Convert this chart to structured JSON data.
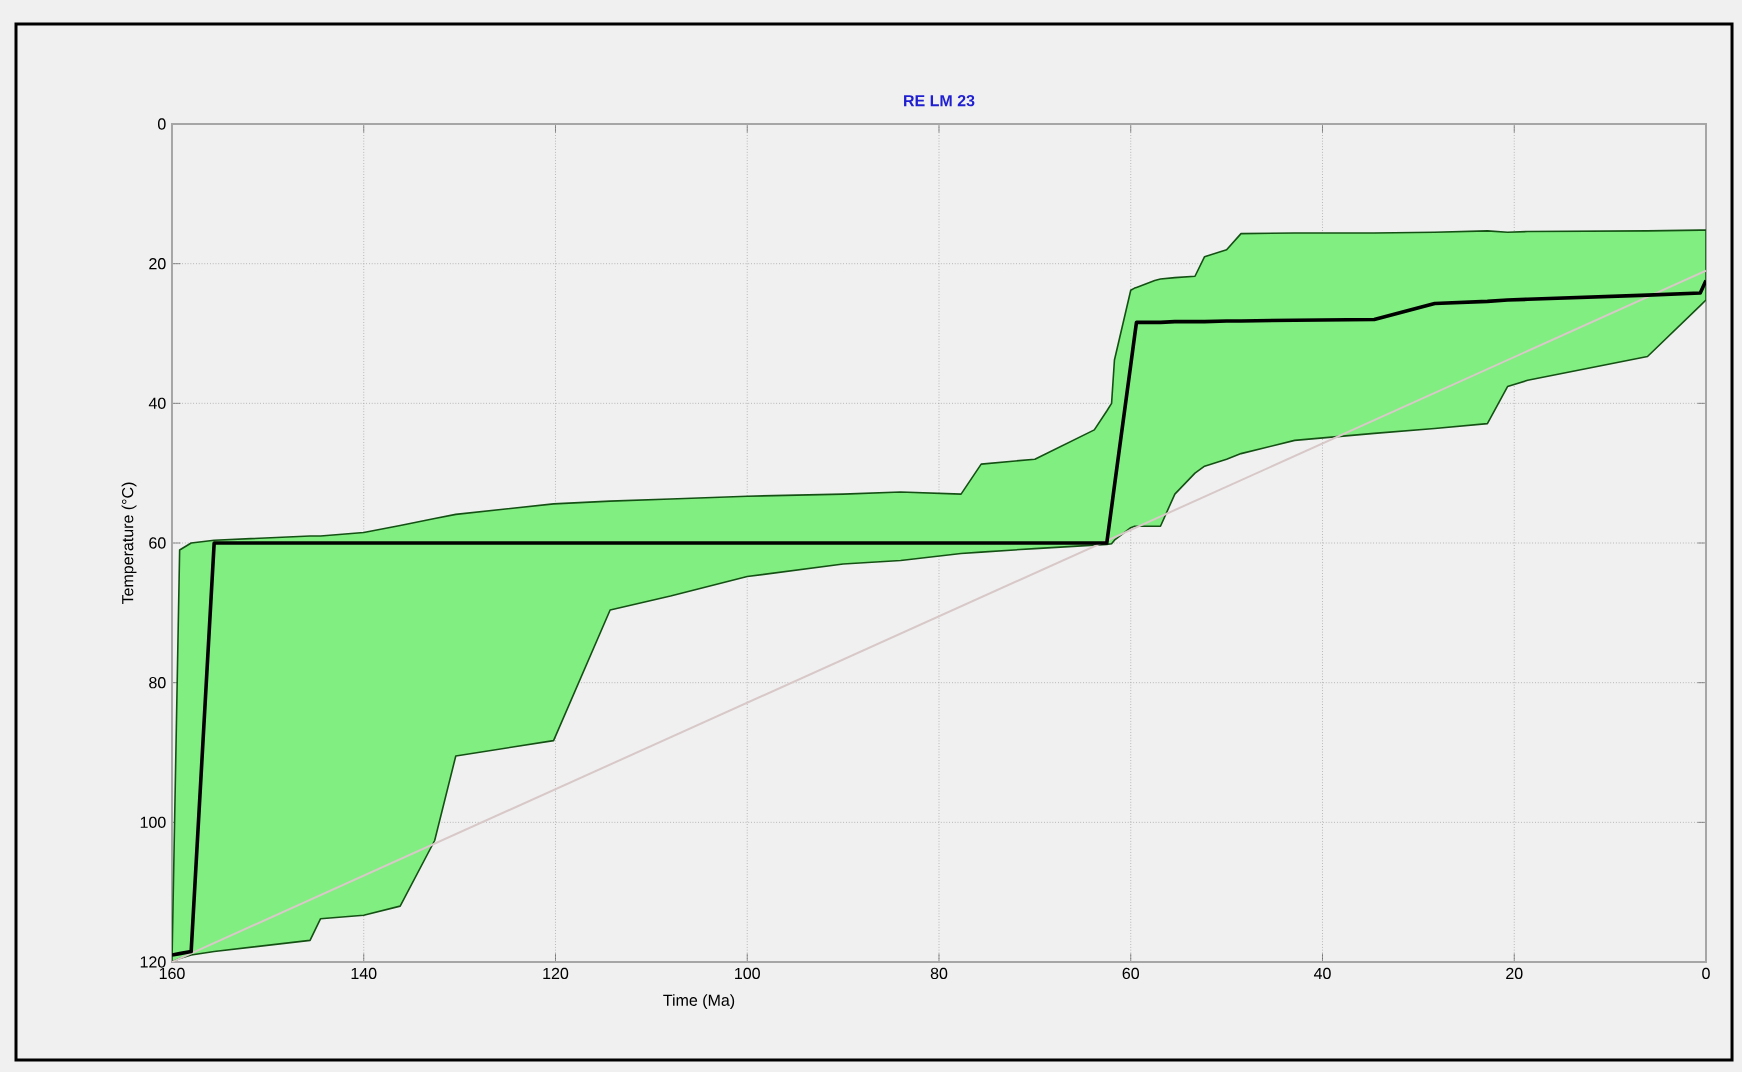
{
  "chart_data": {
    "type": "line",
    "title": "RE LM 23",
    "xlabel": "Time (Ma)",
    "ylabel": "Temperature (°C)",
    "xlim": [
      160,
      0
    ],
    "ylim": [
      120,
      0
    ],
    "xticks": [
      160,
      140,
      120,
      100,
      80,
      60,
      40,
      20,
      0
    ],
    "yticks": [
      0,
      20,
      40,
      60,
      80,
      100,
      120
    ],
    "grid": true,
    "marker": "none",
    "line_style": "solid",
    "series": [
      {
        "color": "#d8c8c8",
        "x": [
          160,
          0
        ],
        "values": [
          120,
          21
        ]
      },
      {
        "color": "#000000",
        "x": [
          160,
          159.2,
          158,
          155.6,
          145.6,
          144.5,
          140,
          136.2,
          132.6,
          130.4,
          120.2,
          114.3,
          108,
          100,
          90,
          84,
          77.7,
          75.6,
          70,
          63.8,
          62.5,
          62,
          61.7,
          60,
          59.6,
          59.4,
          57.5,
          56.9,
          55.4,
          53.3,
          52.3,
          50,
          48.5,
          42.9,
          34.6,
          28.3,
          22.8,
          20.7,
          18.6,
          6.1,
          0.6,
          0
        ],
        "values": [
          119,
          118.8,
          118.5,
          60,
          60,
          60,
          60,
          60,
          60,
          60,
          60,
          60,
          60,
          60,
          60,
          60,
          60,
          60,
          60,
          60,
          60,
          54.9,
          51.8,
          34.5,
          30.4,
          28.4,
          28.4,
          28.4,
          28.3,
          28.3,
          28.3,
          28.2,
          28.2,
          28.1,
          28,
          25.7,
          25.4,
          25.2,
          25.1,
          24.5,
          24.2,
          22.4
        ],
        "upper": [
          120,
          61,
          60,
          59.6,
          59,
          59,
          58.5,
          57.5,
          56.5,
          55.9,
          54.4,
          54,
          53.7,
          53.3,
          53,
          52.7,
          53,
          48.7,
          48,
          43.8,
          41.1,
          40,
          33.8,
          23.8,
          23.5,
          23.4,
          22.4,
          22.2,
          22,
          21.8,
          19,
          18,
          15.7,
          15.6,
          15.6,
          15.5,
          15.3,
          15.5,
          15.4,
          15.3,
          15.2,
          15.2
        ],
        "lower": [
          120,
          119.5,
          119,
          118.5,
          116.9,
          113.8,
          113.3,
          112,
          102.6,
          90.5,
          88.3,
          69.6,
          67.6,
          64.8,
          63,
          62.5,
          61.5,
          61.3,
          60.8,
          60.3,
          60.2,
          60.1,
          59.6,
          57.8,
          57.6,
          57.6,
          57.6,
          57.6,
          53,
          50,
          49,
          48,
          47.2,
          45.3,
          44.3,
          43.6,
          42.9,
          37.6,
          36.7,
          33.3,
          26,
          25.2
        ]
      }
    ]
  }
}
